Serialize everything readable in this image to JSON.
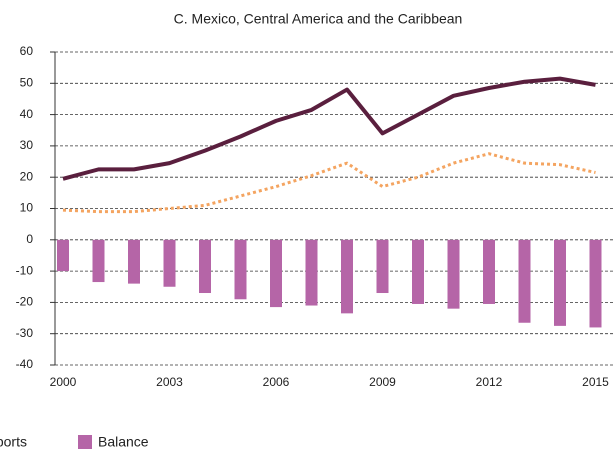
{
  "chart_data": {
    "type": "bar-line",
    "title": "C. Mexico, Central America and the Caribbean",
    "categories": [
      "2000",
      null,
      null,
      "2003",
      null,
      null,
      "2006",
      null,
      null,
      "2009",
      null,
      null,
      "2012",
      null,
      null,
      "2015"
    ],
    "series": [
      {
        "name": "Imports",
        "kind": "line",
        "style": "solid",
        "color": "#5a1f3e",
        "values": [
          19.5,
          22.5,
          22.5,
          24.5,
          28.5,
          33,
          38,
          41.5,
          48,
          34,
          40,
          46,
          48.5,
          50.5,
          51.5,
          49.5
        ]
      },
      {
        "kind": "line",
        "style": "dotted",
        "color": "#f4a460",
        "values": [
          9.5,
          9,
          9,
          10,
          11,
          14,
          17,
          20.5,
          24.5,
          17,
          20,
          24.5,
          27.5,
          24.5,
          24,
          21.5
        ]
      },
      {
        "name": "Balance",
        "kind": "bar",
        "color": "#b565a7",
        "values": [
          -10,
          -13.5,
          -14,
          -15,
          -17,
          -19,
          -21.5,
          -21,
          -23.5,
          -17,
          -20.5,
          -22,
          -20.5,
          -26.5,
          -27.5,
          -28
        ]
      }
    ],
    "ylim": [
      -40,
      60
    ],
    "yticks": [
      -40,
      -30,
      -20,
      -10,
      0,
      10,
      20,
      30,
      40,
      50,
      60
    ],
    "grid": true
  }
}
